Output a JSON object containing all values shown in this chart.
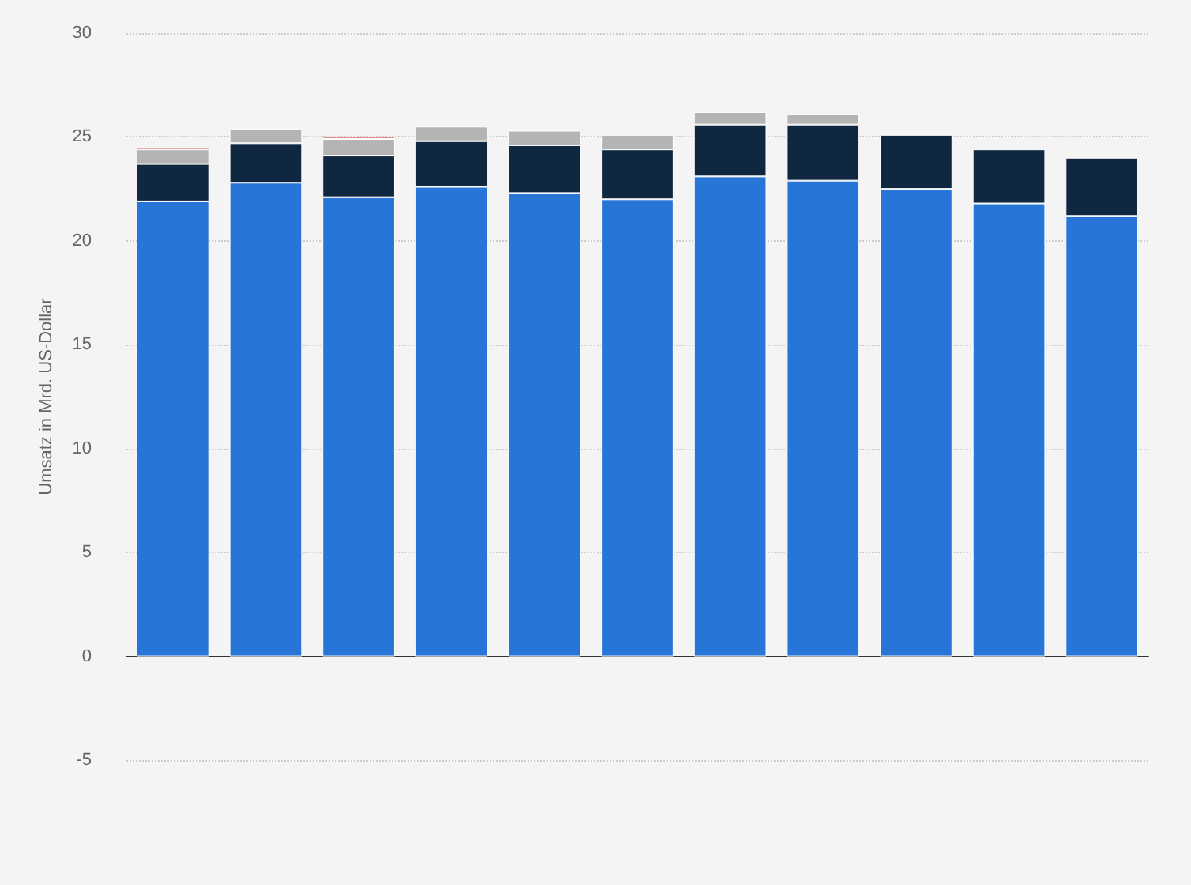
{
  "chart_data": {
    "type": "bar",
    "ylabel": "Umsatz in Mrd. US-Dollar",
    "categories": [
      null,
      null,
      null,
      null,
      null,
      null,
      null,
      null,
      null,
      null,
      null
    ],
    "stacked": true,
    "series": [
      {
        "color": "#2875d8",
        "values": [
          21.9,
          22.8,
          22.1,
          22.6,
          22.3,
          22.0,
          23.1,
          22.9,
          22.5,
          21.8,
          21.2
        ]
      },
      {
        "color": "#0f2740",
        "values": [
          1.8,
          1.9,
          2.0,
          2.2,
          2.3,
          2.4,
          2.5,
          2.7,
          2.6,
          2.6,
          2.8
        ]
      },
      {
        "color": "#b4b4b4",
        "values": [
          0.7,
          0.7,
          0.8,
          0.7,
          0.7,
          0.7,
          0.6,
          0.5,
          null,
          null,
          null
        ]
      },
      {
        "color": "#d0393e",
        "values": [
          0.1,
          null,
          0.1,
          null,
          null,
          null,
          null,
          null,
          null,
          null,
          null
        ]
      }
    ],
    "ylim": [
      -5,
      30
    ],
    "yticks": [
      -5,
      0,
      5,
      10,
      15,
      20,
      25,
      30
    ],
    "grid": "y"
  }
}
